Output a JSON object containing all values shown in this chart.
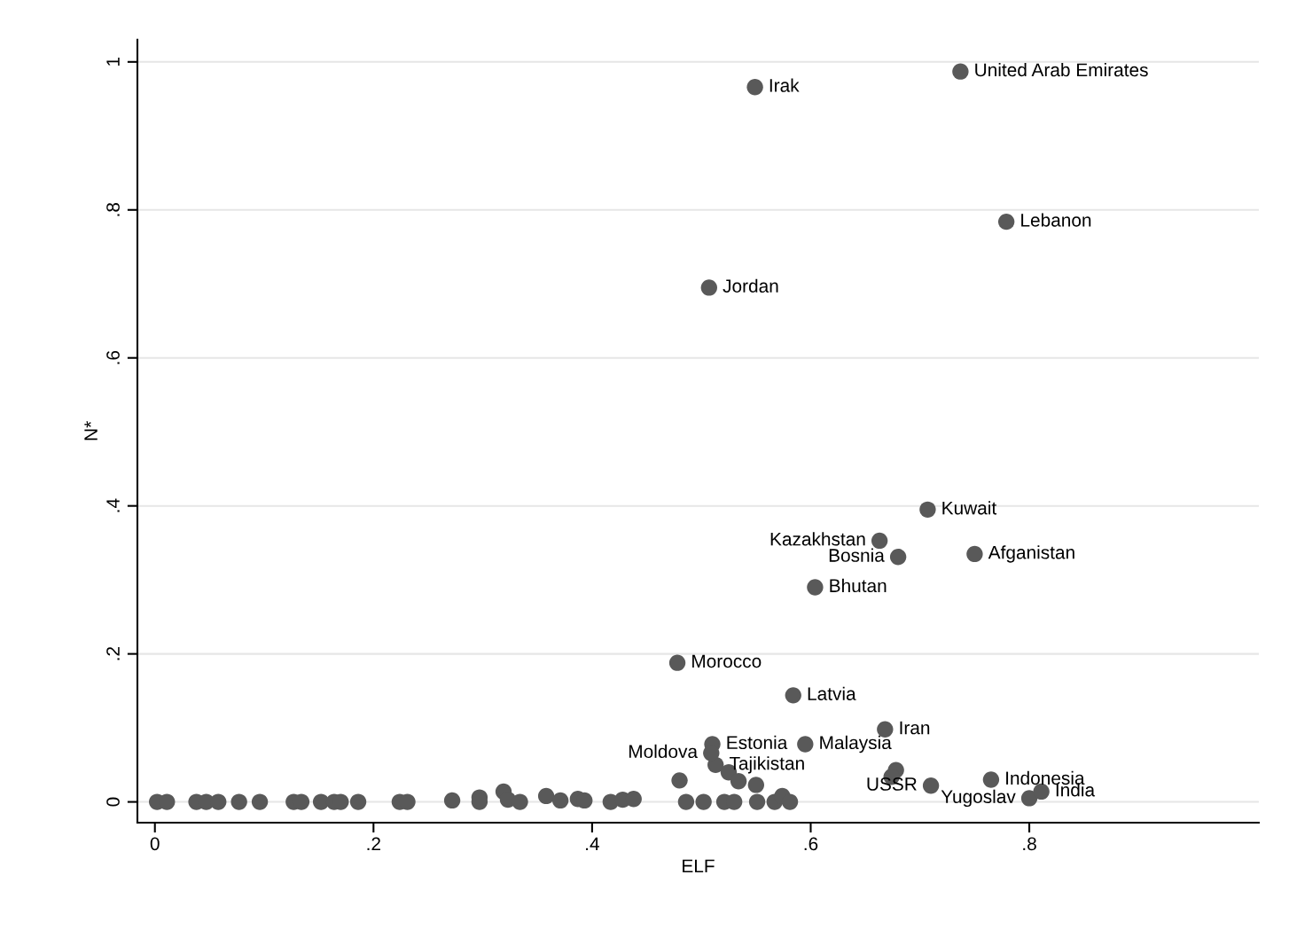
{
  "chart_data": {
    "type": "scatter",
    "xlabel": "ELF",
    "ylabel": "N*",
    "x": [
      0.549,
      0.737,
      0.779,
      0.507,
      0.707,
      0.663,
      0.75,
      0.68,
      0.604,
      0.478,
      0.584,
      0.668,
      0.595,
      0.51,
      0.513,
      0.509,
      0.765,
      0.8,
      0.811,
      0.71,
      0.525,
      0.534,
      0.55,
      0.48,
      0.678,
      0.674,
      0.387,
      0.393,
      0.417,
      0.428,
      0.438,
      0.486,
      0.502,
      0.521,
      0.53,
      0.551,
      0.567,
      0.574,
      0.581,
      0.002,
      0.011,
      0.038,
      0.047,
      0.058,
      0.077,
      0.096,
      0.127,
      0.134,
      0.152,
      0.164,
      0.17,
      0.186,
      0.224,
      0.231,
      0.272,
      0.297,
      0.297,
      0.319,
      0.323,
      0.334,
      0.358,
      0.371
    ],
    "values": [
      0.966,
      0.987,
      0.784,
      0.695,
      0.395,
      0.353,
      0.335,
      0.331,
      0.29,
      0.188,
      0.144,
      0.098,
      0.078,
      0.078,
      0.05,
      0.066,
      0.03,
      0.005,
      0.014,
      0.022,
      0.04,
      0.028,
      0.023,
      0.029,
      0.043,
      0.034,
      0.004,
      0.002,
      0,
      0.003,
      0.004,
      0,
      0,
      0,
      0,
      0,
      0,
      0.008,
      0,
      0,
      0,
      0,
      0,
      0,
      0,
      0,
      0,
      0,
      0,
      0,
      0,
      0,
      0,
      0,
      0.002,
      0.006,
      0,
      0.014,
      0.003,
      0,
      0.008,
      0.002
    ],
    "color": "#595959",
    "marker": "circle",
    "xlim": [
      -0.016,
      1.01
    ],
    "ylim": [
      -0.028,
      1.03
    ],
    "xticks": [
      0,
      {
        "value": 0.2,
        "label": ".2"
      },
      {
        "value": 0.4,
        "label": ".4"
      },
      {
        "value": 0.6,
        "label": ".6"
      },
      {
        "value": 0.8,
        "label": ".8"
      }
    ],
    "yticks": [
      0,
      {
        "value": 0.2,
        "label": ".2"
      },
      {
        "value": 0.4,
        "label": ".4"
      },
      {
        "value": 0.6,
        "label": ".6"
      },
      {
        "value": 0.8,
        "label": ".8"
      },
      1
    ],
    "grid": "y",
    "annotations": [
      {
        "text": "Irak",
        "x": 0.549,
        "y": 0.966
      },
      {
        "text": "United Arab Emirates",
        "x": 0.737,
        "y": 0.987
      },
      {
        "text": "Lebanon",
        "x": 0.779,
        "y": 0.784
      },
      {
        "text": "Jordan",
        "x": 0.507,
        "y": 0.695
      },
      {
        "text": "Kuwait",
        "x": 0.707,
        "y": 0.395
      },
      {
        "text": "Kazakhstan",
        "x": 0.663,
        "y": 0.353
      },
      {
        "text": "Afganistan",
        "x": 0.75,
        "y": 0.335
      },
      {
        "text": "Bosnia",
        "x": 0.68,
        "y": 0.331
      },
      {
        "text": "Bhutan",
        "x": 0.604,
        "y": 0.29
      },
      {
        "text": "Morocco",
        "x": 0.478,
        "y": 0.188
      },
      {
        "text": "Latvia",
        "x": 0.584,
        "y": 0.144
      },
      {
        "text": "Iran",
        "x": 0.668,
        "y": 0.098
      },
      {
        "text": "Malaysia",
        "x": 0.595,
        "y": 0.078
      },
      {
        "text": "Estonia",
        "x": 0.51,
        "y": 0.078
      },
      {
        "text": "Moldova",
        "x": 0.509,
        "y": 0.066
      },
      {
        "text": "Tajikistan",
        "x": 0.513,
        "y": 0.05
      },
      {
        "text": "Indonesia",
        "x": 0.765,
        "y": 0.03
      },
      {
        "text": "Yugoslav",
        "x": 0.8,
        "y": 0.005
      },
      {
        "text": "India",
        "x": 0.811,
        "y": 0.014
      },
      {
        "text": "USSR",
        "x": 0.71,
        "y": 0.022
      }
    ]
  }
}
